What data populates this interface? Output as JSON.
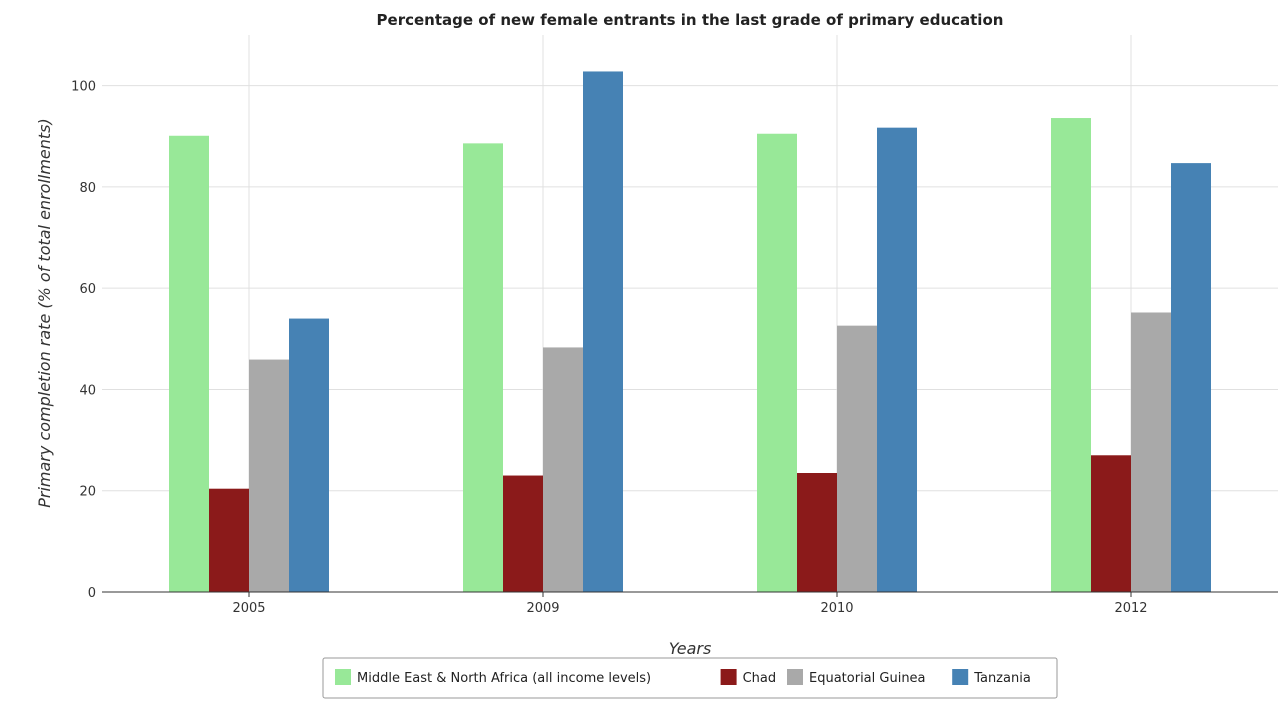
{
  "chart_data": {
    "type": "bar",
    "title": "Percentage of new female entrants in the last grade of primary education",
    "xlabel": "Years",
    "ylabel": "Primary completion rate (% of total enrollments)",
    "categories": [
      "2005",
      "2009",
      "2010",
      "2012"
    ],
    "ylim": [
      0,
      110
    ],
    "yticks": [
      "0",
      "20",
      "40",
      "60",
      "80",
      "100"
    ],
    "grid": true,
    "legend_position": "bottom-center",
    "series": [
      {
        "name": "Middle East & North Africa (all income levels)",
        "color": "#98e898",
        "values": [
          90.1,
          88.6,
          90.5,
          93.6
        ]
      },
      {
        "name": "Chad",
        "color": "#8b1a1a",
        "values": [
          20.4,
          23.0,
          23.5,
          27.0
        ]
      },
      {
        "name": "Equatorial Guinea",
        "color": "#a9a9a9",
        "values": [
          45.9,
          48.3,
          52.6,
          55.2
        ]
      },
      {
        "name": "Tanzania",
        "color": "#4682b4",
        "values": [
          54.0,
          102.8,
          91.7,
          84.7
        ]
      }
    ]
  }
}
